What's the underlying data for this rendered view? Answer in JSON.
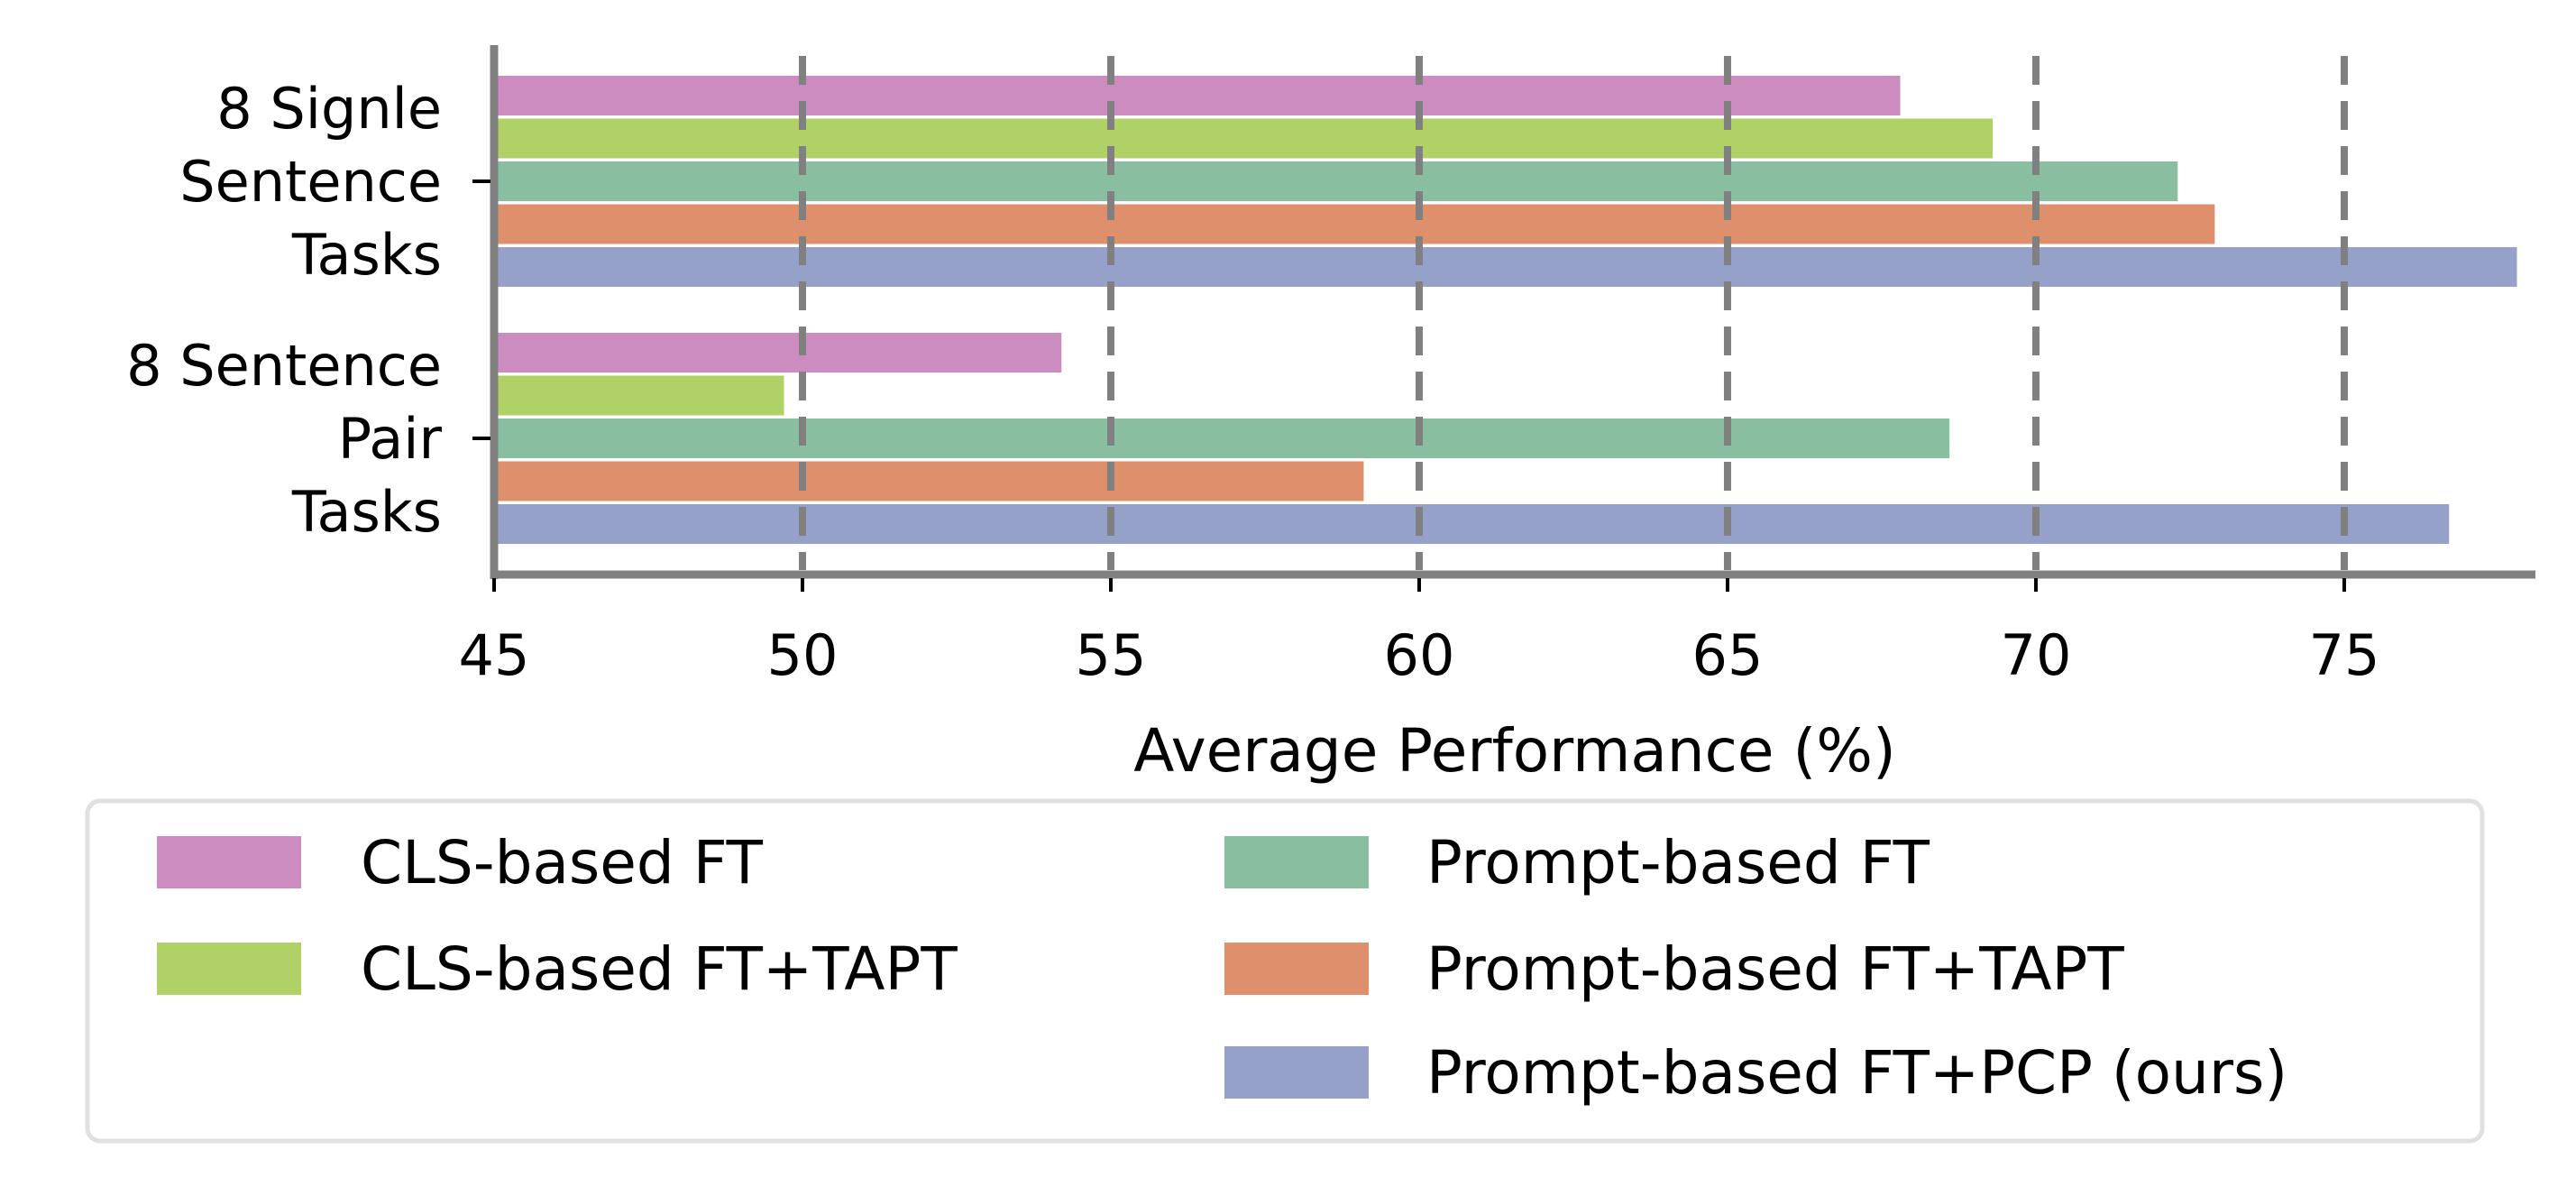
{
  "chart_data": {
    "type": "bar",
    "orientation": "horizontal",
    "categories": [
      [
        "8 Signle",
        "Sentence",
        "Tasks"
      ],
      [
        "8 Sentence",
        "Pair",
        "Tasks"
      ]
    ],
    "series": [
      {
        "name": "CLS-based FT",
        "color": "#cc8cc0",
        "values": [
          67.8,
          54.2
        ]
      },
      {
        "name": "CLS-based FT+TAPT",
        "color": "#b0d166",
        "values": [
          69.3,
          49.7
        ]
      },
      {
        "name": "Prompt-based FT",
        "color": "#89bfa0",
        "values": [
          72.3,
          68.6
        ]
      },
      {
        "name": "Prompt-based FT+TAPT",
        "color": "#de8f6c",
        "values": [
          72.9,
          59.1
        ]
      },
      {
        "name": "Prompt-based FT+PCP (ours)",
        "color": "#96a1c9",
        "values": [
          77.8,
          76.7
        ]
      }
    ],
    "xlabel": "Average Performance (%)",
    "xlim": [
      45,
      78.1
    ],
    "xticks": [
      "45",
      "50",
      "55",
      "60",
      "65",
      "70",
      "75"
    ],
    "gridlines": [
      50,
      55,
      60,
      65,
      70,
      75
    ],
    "grid": "vertical dashed",
    "legend_placement": "bottom"
  }
}
